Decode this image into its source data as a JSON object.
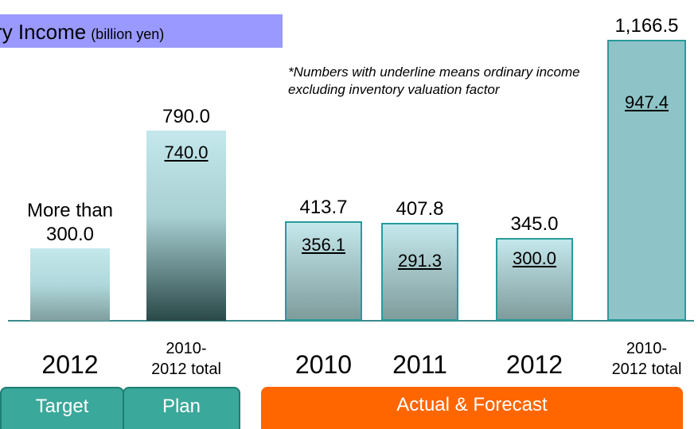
{
  "chart_data": {
    "type": "bar",
    "title": "Ordinary Income",
    "subtitle": "(billion yen)",
    "annotation": "*Numbers with underline means ordinary income excluding inventory valuation factor",
    "categories": [
      "2012",
      "2010-\n2012 total",
      "2010",
      "2011",
      "2012",
      "2010-\n2012 total"
    ],
    "series": [
      {
        "name": "Ordinary income",
        "values": [
          300,
          790,
          413.7,
          407.8,
          345,
          1166.5
        ],
        "value_labels": [
          "More than 300.0",
          "790.0",
          "413.7",
          "407.8",
          "345.0",
          "1,166.5"
        ]
      },
      {
        "name": "Excluding inventory valuation factor",
        "values": [
          null,
          740,
          356.1,
          291.3,
          300,
          947.4
        ],
        "value_labels": [
          null,
          "740.0",
          "356.1",
          "291.3",
          "300.0",
          "947.4"
        ]
      }
    ],
    "groups": [
      {
        "label": "Target",
        "from": 0,
        "to": 0
      },
      {
        "label": "Plan",
        "from": 1,
        "to": 1
      },
      {
        "label": "Actual & Forecast",
        "from": 2,
        "to": 5
      }
    ],
    "ylim": [
      0,
      1200
    ]
  }
}
